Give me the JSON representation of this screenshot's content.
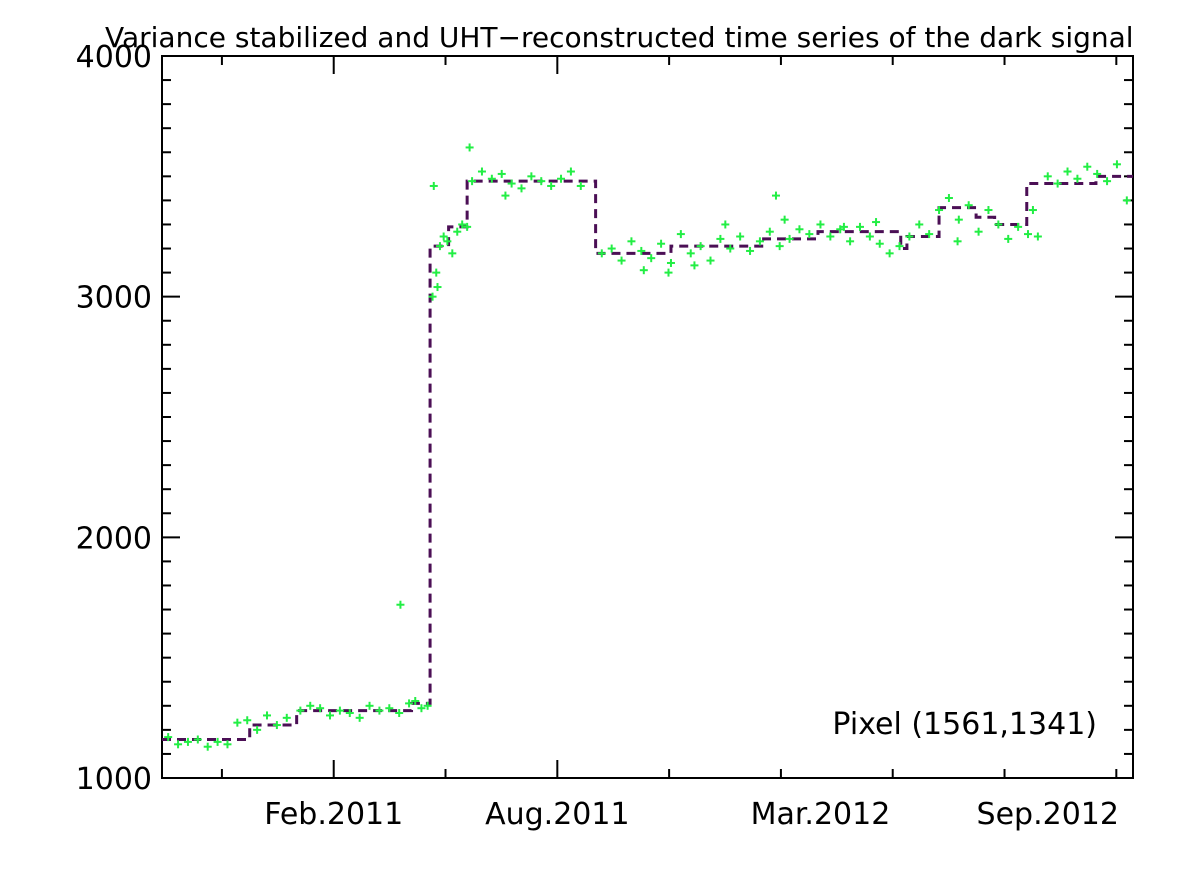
{
  "chart_data": {
    "type": "scatter",
    "title": "Variance stabilized and UHT−reconstructed time series of the dark signal",
    "xlabel": "",
    "ylabel": "",
    "annotation": "Pixel (1561,1341)",
    "x_is_date": true,
    "xlim": [
      "2010-09-15",
      "2012-11-09"
    ],
    "ylim": [
      1000,
      4000
    ],
    "yticks": [
      1000,
      2000,
      3000,
      4000
    ],
    "ytick_labels": [
      "1000",
      "2000",
      "3000",
      "4000"
    ],
    "xticks": [
      "2011-02-01",
      "2011-08-01",
      "2012-03-01",
      "2012-09-01"
    ],
    "xtick_labels": [
      "Feb.2011",
      "Aug.2011",
      "Mar.2012",
      "Sep.2012"
    ],
    "grid": false,
    "colors": {
      "points": "#22ee44",
      "step": "#4b0f55",
      "axes": "#000000"
    },
    "series": [
      {
        "type": "step",
        "style": "dashed",
        "color": "#4b0f55",
        "x": [
          "2010-09-15",
          "2010-10-31",
          "2010-11-25",
          "2011-01-01",
          "2011-01-02",
          "2011-03-05",
          "2011-04-05",
          "2011-04-20",
          "2011-05-05",
          "2011-05-20",
          "2011-09-01",
          "2011-10-25",
          "2011-11-01",
          "2012-01-15",
          "2012-02-25",
          "2012-02-28",
          "2012-04-20",
          "2012-05-05",
          "2012-05-10",
          "2012-06-05",
          "2012-07-05",
          "2012-07-20",
          "2012-08-15",
          "2012-09-10",
          "2012-10-10",
          "2012-11-09"
        ],
        "values": [
          1160,
          1160,
          1220,
          1220,
          1280,
          1280,
          1310,
          3210,
          3290,
          3480,
          3180,
          3180,
          3210,
          3240,
          3240,
          3270,
          3270,
          3200,
          3250,
          3370,
          3330,
          3300,
          3470,
          3470,
          3500,
          3500
        ]
      },
      {
        "type": "scatter",
        "marker": "+",
        "color": "#22ee44",
        "x": [
          "2010-09-20",
          "2010-09-28",
          "2010-10-06",
          "2010-10-14",
          "2010-10-22",
          "2010-10-30",
          "2010-11-07",
          "2010-11-15",
          "2010-11-23",
          "2010-12-01",
          "2010-12-09",
          "2010-12-17",
          "2010-12-25",
          "2011-01-05",
          "2011-01-13",
          "2011-01-21",
          "2011-01-29",
          "2011-02-06",
          "2011-02-14",
          "2011-02-22",
          "2011-03-02",
          "2011-03-10",
          "2011-03-18",
          "2011-03-26",
          "2011-04-03",
          "2011-04-08",
          "2011-04-13",
          "2011-04-18",
          "2011-03-27",
          "2011-04-22",
          "2011-04-25",
          "2011-04-28",
          "2011-05-01",
          "2011-05-04",
          "2011-05-08",
          "2011-05-12",
          "2011-05-16",
          "2011-05-20",
          "2011-04-23",
          "2011-04-26",
          "2011-05-24",
          "2011-06-01",
          "2011-06-09",
          "2011-06-17",
          "2011-06-25",
          "2011-07-03",
          "2011-07-11",
          "2011-07-19",
          "2011-07-27",
          "2011-08-04",
          "2011-08-12",
          "2011-08-20",
          "2011-05-22",
          "2011-06-20",
          "2011-09-06",
          "2011-09-14",
          "2011-09-22",
          "2011-09-30",
          "2011-10-08",
          "2011-10-16",
          "2011-10-24",
          "2011-11-01",
          "2011-11-09",
          "2011-11-17",
          "2011-11-25",
          "2011-12-03",
          "2011-12-11",
          "2011-12-19",
          "2011-12-27",
          "2012-01-04",
          "2012-01-12",
          "2012-01-20",
          "2012-01-28",
          "2012-02-05",
          "2012-02-13",
          "2012-02-21",
          "2012-03-01",
          "2012-03-09",
          "2012-03-17",
          "2012-03-25",
          "2012-04-02",
          "2012-04-10",
          "2012-04-18",
          "2012-04-26",
          "2012-05-04",
          "2012-05-12",
          "2012-05-20",
          "2012-05-28",
          "2012-06-05",
          "2012-06-13",
          "2012-06-21",
          "2012-06-29",
          "2012-07-07",
          "2012-07-15",
          "2012-07-23",
          "2012-07-31",
          "2012-08-08",
          "2012-08-16",
          "2012-08-24",
          "2012-09-01",
          "2012-09-09",
          "2012-09-17",
          "2012-09-25",
          "2012-10-03",
          "2012-10-11",
          "2012-10-19",
          "2012-10-27",
          "2012-11-04",
          "2011-10-10",
          "2011-11-20",
          "2011-12-15",
          "2012-02-01",
          "2012-03-20",
          "2012-04-15",
          "2011-10-30",
          "2012-01-25",
          "2012-06-20",
          "2012-08-20"
        ],
        "values": [
          1170,
          1140,
          1150,
          1160,
          1130,
          1150,
          1140,
          1230,
          1240,
          1200,
          1260,
          1220,
          1250,
          1280,
          1300,
          1290,
          1260,
          1280,
          1270,
          1250,
          1300,
          1280,
          1290,
          1270,
          1310,
          1320,
          1290,
          1300,
          1720,
          3000,
          3100,
          3210,
          3250,
          3230,
          3180,
          3270,
          3300,
          3290,
          3460,
          3040,
          3480,
          3520,
          3490,
          3510,
          3470,
          3450,
          3500,
          3480,
          3460,
          3490,
          3520,
          3460,
          3620,
          3420,
          3180,
          3200,
          3150,
          3230,
          3190,
          3160,
          3220,
          3140,
          3260,
          3180,
          3210,
          3150,
          3240,
          3200,
          3250,
          3190,
          3230,
          3270,
          3210,
          3240,
          3280,
          3260,
          3300,
          3250,
          3280,
          3230,
          3290,
          3250,
          3220,
          3180,
          3210,
          3250,
          3300,
          3260,
          3360,
          3410,
          3320,
          3380,
          3270,
          3360,
          3300,
          3240,
          3290,
          3260,
          3250,
          3500,
          3470,
          3520,
          3490,
          3540,
          3510,
          3480,
          3550,
          3400,
          3110,
          3130,
          3300,
          3320,
          3290,
          3310,
          3100,
          3420,
          3230,
          3360
        ]
      }
    ]
  }
}
